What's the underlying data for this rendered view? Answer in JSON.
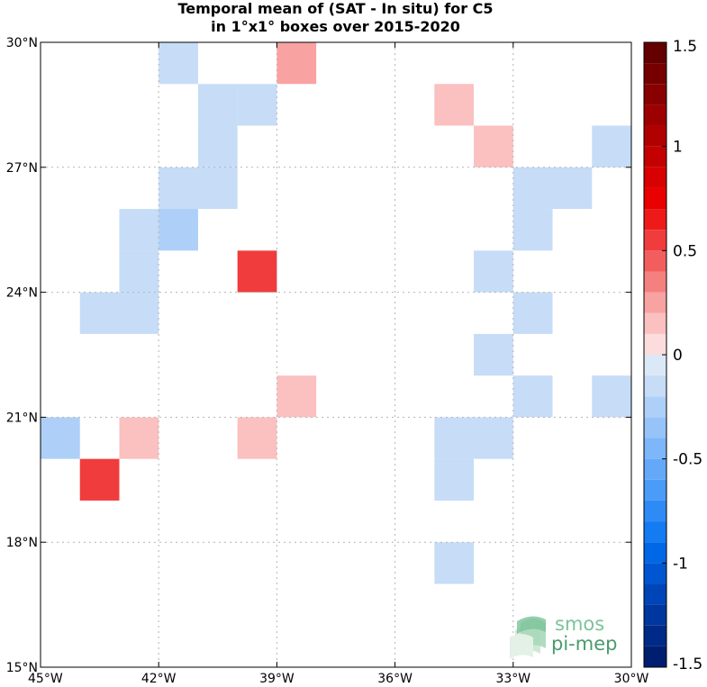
{
  "title": {
    "line1": "Temporal mean of (SAT - In situ) for C5",
    "line2": "in 1°x1° boxes over 2015-2020"
  },
  "map": {
    "lon_range": [
      -45,
      -30
    ],
    "lat_range": [
      15,
      30
    ],
    "x_ticks": [
      {
        "value": -45,
        "label": "45°W"
      },
      {
        "value": -42,
        "label": "42°W"
      },
      {
        "value": -39,
        "label": "39°W"
      },
      {
        "value": -36,
        "label": "36°W"
      },
      {
        "value": -33,
        "label": "33°W"
      },
      {
        "value": -30,
        "label": "30°W"
      }
    ],
    "y_ticks": [
      {
        "value": 30,
        "label": "30°N"
      },
      {
        "value": 27,
        "label": "27°N"
      },
      {
        "value": 24,
        "label": "24°N"
      },
      {
        "value": 21,
        "label": "21°N"
      },
      {
        "value": 18,
        "label": "18°N"
      },
      {
        "value": 15,
        "label": "15°N"
      }
    ],
    "grid": true
  },
  "chart_data": {
    "type": "heatmap",
    "cell_size_deg": 1,
    "color_range": [
      -1.5,
      1.5
    ],
    "cells": [
      {
        "lon": -42,
        "lat": 29,
        "value": -0.15
      },
      {
        "lon": -39,
        "lat": 29,
        "value": 0.3
      },
      {
        "lon": -41,
        "lat": 28,
        "value": -0.15
      },
      {
        "lon": -40,
        "lat": 28,
        "value": -0.15
      },
      {
        "lon": -35,
        "lat": 28,
        "value": 0.15
      },
      {
        "lon": -41,
        "lat": 27,
        "value": -0.15
      },
      {
        "lon": -34,
        "lat": 27,
        "value": 0.15
      },
      {
        "lon": -31,
        "lat": 27,
        "value": -0.15
      },
      {
        "lon": -42,
        "lat": 26,
        "value": -0.15
      },
      {
        "lon": -41,
        "lat": 26,
        "value": -0.15
      },
      {
        "lon": -33,
        "lat": 26,
        "value": -0.15
      },
      {
        "lon": -32,
        "lat": 26,
        "value": -0.15
      },
      {
        "lon": -43,
        "lat": 25,
        "value": -0.15
      },
      {
        "lon": -42,
        "lat": 25,
        "value": -0.25
      },
      {
        "lon": -33,
        "lat": 25,
        "value": -0.15
      },
      {
        "lon": -43,
        "lat": 24,
        "value": -0.15
      },
      {
        "lon": -40,
        "lat": 24,
        "value": 0.55
      },
      {
        "lon": -34,
        "lat": 24,
        "value": -0.15
      },
      {
        "lon": -44,
        "lat": 23,
        "value": -0.15
      },
      {
        "lon": -43,
        "lat": 23,
        "value": -0.15
      },
      {
        "lon": -33,
        "lat": 23,
        "value": -0.15
      },
      {
        "lon": -34,
        "lat": 22,
        "value": -0.15
      },
      {
        "lon": -39,
        "lat": 21,
        "value": 0.15
      },
      {
        "lon": -33,
        "lat": 21,
        "value": -0.15
      },
      {
        "lon": -31,
        "lat": 21,
        "value": -0.15
      },
      {
        "lon": -45,
        "lat": 20,
        "value": -0.25
      },
      {
        "lon": -43,
        "lat": 20,
        "value": 0.15
      },
      {
        "lon": -40,
        "lat": 20,
        "value": 0.15
      },
      {
        "lon": -35,
        "lat": 20,
        "value": -0.15
      },
      {
        "lon": -34,
        "lat": 20,
        "value": -0.15
      },
      {
        "lon": -44,
        "lat": 19,
        "value": 0.55
      },
      {
        "lon": -35,
        "lat": 19,
        "value": -0.15
      },
      {
        "lon": -35,
        "lat": 17,
        "value": -0.15
      }
    ]
  },
  "colorbar": {
    "min": -1.5,
    "max": 1.5,
    "step": 0.1,
    "ticks": [
      {
        "value": 1.5,
        "label": "1.5"
      },
      {
        "value": 1.0,
        "label": "1"
      },
      {
        "value": 0.5,
        "label": "0.5"
      },
      {
        "value": 0.0,
        "label": "0"
      },
      {
        "value": -0.5,
        "label": "-0.5"
      },
      {
        "value": -1.0,
        "label": "-1"
      },
      {
        "value": -1.5,
        "label": "-1.5"
      }
    ],
    "colors": {
      "neg": [
        "#dbe8f8",
        "#c6dcf7",
        "#aed0f8",
        "#96c4f9",
        "#7db6f9",
        "#64a9f9",
        "#4b9bf8",
        "#2e8bf5",
        "#147cf2",
        "#0068e6",
        "#0056d0",
        "#0045b8",
        "#00379f",
        "#002a88",
        "#001e70"
      ],
      "pos": [
        "#fcdcdc",
        "#fbc0c0",
        "#f8a2a2",
        "#f58080",
        "#f25e5e",
        "#f03c3c",
        "#ee1a1a",
        "#ea0000",
        "#d80000",
        "#c40000",
        "#b00000",
        "#9c0000",
        "#880000",
        "#760000",
        "#640000"
      ]
    }
  },
  "logo": {
    "line1": "smos",
    "line2": "pi-mep"
  }
}
